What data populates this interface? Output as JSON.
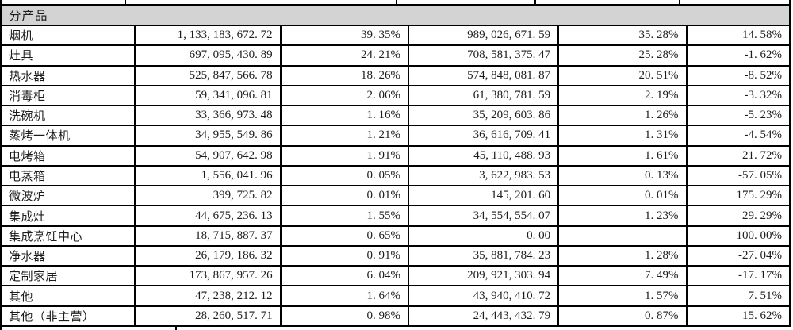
{
  "table": {
    "section_header": "分产品",
    "rows": [
      [
        "烟机",
        "1,133,183,672.72",
        "39.35%",
        "989,026,671.59",
        "35.28%",
        "14.58%"
      ],
      [
        "灶具",
        "697,095,430.89",
        "24.21%",
        "708,581,375.47",
        "25.28%",
        "-1.62%"
      ],
      [
        "热水器",
        "525,847,566.78",
        "18.26%",
        "574,848,081.87",
        "20.51%",
        "-8.52%"
      ],
      [
        "消毒柜",
        "59,341,096.81",
        "2.06%",
        "61,380,781.59",
        "2.19%",
        "-3.32%"
      ],
      [
        "洗碗机",
        "33,366,973.48",
        "1.16%",
        "35,209,603.86",
        "1.26%",
        "-5.23%"
      ],
      [
        "蒸烤一体机",
        "34,955,549.86",
        "1.21%",
        "36,616,709.41",
        "1.31%",
        "-4.54%"
      ],
      [
        "电烤箱",
        "54,907,642.98",
        "1.91%",
        "45,110,488.93",
        "1.61%",
        "21.72%"
      ],
      [
        "电蒸箱",
        "1,556,041.96",
        "0.05%",
        "3,622,983.53",
        "0.13%",
        "-57.05%"
      ],
      [
        "微波炉",
        "399,725.82",
        "0.01%",
        "145,201.60",
        "0.01%",
        "175.29%"
      ],
      [
        "集成灶",
        "44,675,236.13",
        "1.55%",
        "34,554,554.07",
        "1.23%",
        "29.29%"
      ],
      [
        "集成烹饪中心",
        "18,715,887.37",
        "0.65%",
        "0.00",
        "",
        "100.00%"
      ],
      [
        "净水器",
        "26,179,186.32",
        "0.91%",
        "35,881,784.23",
        "1.28%",
        "-27.04%"
      ],
      [
        "定制家居",
        "173,867,957.26",
        "6.04%",
        "209,921,303.94",
        "7.49%",
        "-17.17%"
      ],
      [
        "其他",
        "47,238,212.12",
        "1.64%",
        "43,940,410.72",
        "1.57%",
        "7.51%"
      ],
      [
        "其他（非主营）",
        "28,260,517.71",
        "0.98%",
        "24,443,432.79",
        "0.87%",
        "15.62%"
      ]
    ]
  },
  "colors": {
    "header_bg": "#d3d3d3",
    "border": "#000000",
    "text": "#1c1c1c"
  }
}
